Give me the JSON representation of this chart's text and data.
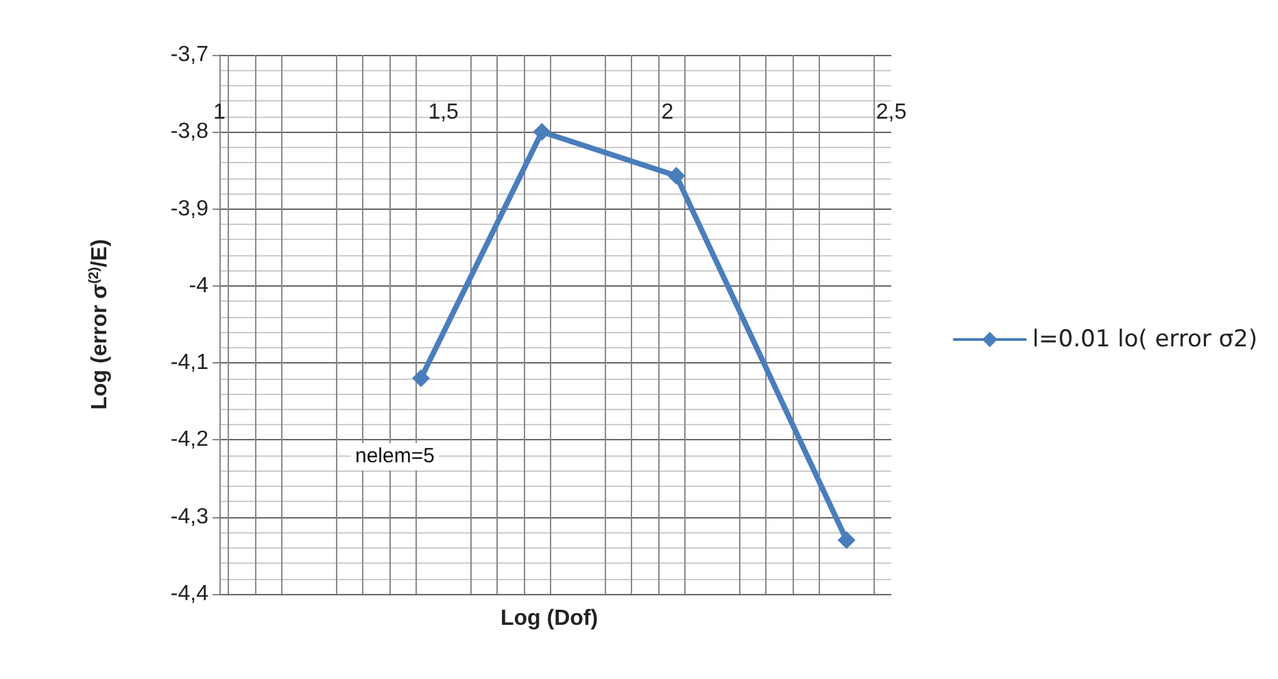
{
  "chart_data": {
    "type": "line",
    "xlabel": "Log (Dof)",
    "ylabel": "Log (error σ$^{(2)}$/E)",
    "x": [
      1.45,
      1.72,
      2.02,
      2.4
    ],
    "series": [
      {
        "name": "l=0.01 lo( error σ2)",
        "color": "#4a7ebb",
        "values": [
          -4.12,
          -3.8,
          -3.857,
          -4.33
        ]
      }
    ],
    "xlim": [
      1,
      2.5
    ],
    "xticks": [
      1,
      {
        "value": 1.5,
        "label": "1,5"
      },
      2,
      {
        "value": 2.5,
        "label": "2,5"
      }
    ],
    "ylim": [
      -4.4,
      -3.7
    ],
    "yticks": [
      {
        "value": -4.4,
        "label": "-4,4"
      },
      {
        "value": -4.3,
        "label": "-4,3"
      },
      {
        "value": -4.2,
        "label": "-4,2"
      },
      {
        "value": -4.1,
        "label": "-4,1"
      },
      -4,
      {
        "value": -3.9,
        "label": "-3,9"
      },
      {
        "value": -3.8,
        "label": "-3,8"
      },
      {
        "value": -3.7,
        "label": "-3,7"
      }
    ],
    "annotations": [
      "nelem=5"
    ],
    "grid": true,
    "legend": "right",
    "marker": "diamond",
    "line_style": "solid"
  }
}
